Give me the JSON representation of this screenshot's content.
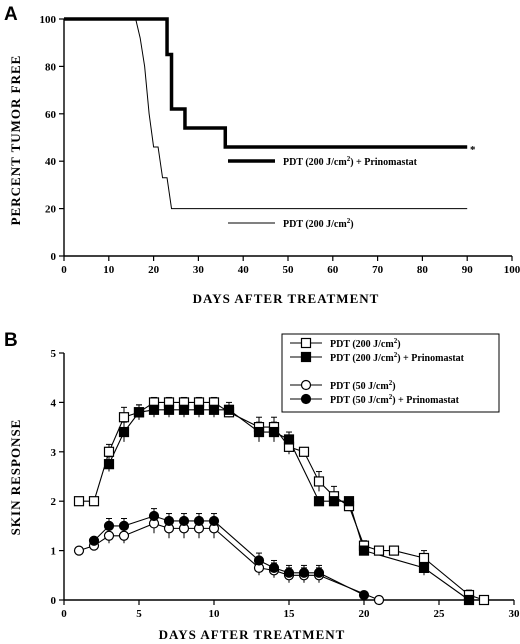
{
  "panels": [
    {
      "letter": "A",
      "ylabel": "PERCENT TUMOR FREE",
      "xlabel": "DAYS AFTER TREATMENT",
      "annotation": "*",
      "legend": [
        {
          "text": "PDT  (200 J/cm",
          "sup": "2",
          "tail": ") + Prinomastat"
        },
        {
          "text": "PDT  (200 J/cm",
          "sup": "2",
          "tail": ")"
        }
      ]
    },
    {
      "letter": "B",
      "ylabel": "SKIN RESPONSE",
      "xlabel": "DAYS AFTER TREATMENT",
      "legend": [
        {
          "text": "PDT (200 J/cm",
          "sup": "2",
          "tail": ")"
        },
        {
          "text": "PDT (200 J/cm",
          "sup": "2",
          "tail": ") + Prinomastat"
        },
        {
          "text": "PDT (50 J/cm",
          "sup": "2",
          "tail": ")"
        },
        {
          "text": "PDT (50 J/cm",
          "sup": "2",
          "tail": ") + Prinomastat"
        }
      ]
    }
  ],
  "chart_data": [
    {
      "type": "line",
      "step": true,
      "xlim": [
        0,
        100
      ],
      "ylim": [
        0,
        100
      ],
      "xticks": [
        0,
        10,
        20,
        30,
        40,
        50,
        60,
        70,
        80,
        90,
        100
      ],
      "yticks": [
        0,
        20,
        40,
        60,
        80,
        100
      ],
      "series": [
        {
          "name": "PDT  (200 J/cm2) + Prinomastat",
          "style": "thick",
          "x": [
            0,
            23,
            23,
            24,
            24,
            27,
            27,
            36,
            36,
            90
          ],
          "y": [
            100,
            100,
            85,
            85,
            62,
            62,
            54,
            54,
            46,
            46
          ]
        },
        {
          "name": "PDT  (200 J/cm2)",
          "style": "thin",
          "x": [
            0,
            16,
            17,
            18,
            19,
            20,
            21,
            22,
            23,
            24,
            90
          ],
          "y": [
            100,
            100,
            92,
            80,
            60,
            46,
            46,
            33,
            33,
            20,
            20
          ]
        }
      ]
    },
    {
      "type": "line",
      "xlim": [
        0,
        30
      ],
      "ylim": [
        0,
        5
      ],
      "xticks": [
        0,
        5,
        10,
        15,
        20,
        25,
        30
      ],
      "yticks": [
        0,
        1,
        2,
        3,
        4,
        5
      ],
      "series": [
        {
          "name": "PDT (200 J/cm2)",
          "marker": "square-open",
          "x": [
            1,
            2,
            3,
            4,
            5,
            6,
            7,
            8,
            9,
            10,
            11,
            13,
            14,
            15,
            16,
            17,
            18,
            19,
            20,
            21,
            22,
            24,
            27,
            28
          ],
          "y": [
            2,
            2,
            3,
            3.7,
            3.8,
            4,
            4,
            4,
            4,
            4,
            3.8,
            3.5,
            3.5,
            3.1,
            3,
            2.4,
            2.1,
            1.9,
            1.1,
            1,
            1,
            0.85,
            0.1,
            0
          ],
          "err": [
            0,
            0,
            0.15,
            0.2,
            0.15,
            0.1,
            0.1,
            0.1,
            0.1,
            0.1,
            0.1,
            0.2,
            0.2,
            0.15,
            0,
            0.2,
            0.2,
            0.1,
            0.1,
            0,
            0,
            0.15,
            0.1,
            0
          ]
        },
        {
          "name": "PDT (200 J/cm2) + Prinomastat",
          "marker": "square-filled",
          "x": [
            3,
            4,
            5,
            6,
            7,
            8,
            9,
            10,
            11,
            13,
            14,
            15,
            17,
            18,
            19,
            20,
            24,
            27
          ],
          "y": [
            2.75,
            3.4,
            3.8,
            3.85,
            3.85,
            3.85,
            3.85,
            3.85,
            3.85,
            3.4,
            3.4,
            3.25,
            2,
            2,
            2,
            1,
            0.65,
            0
          ],
          "err": [
            0.15,
            0.2,
            0.15,
            0.15,
            0.15,
            0.15,
            0.15,
            0.15,
            0.15,
            0.2,
            0.2,
            0.15,
            0,
            0,
            0,
            0.1,
            0.15,
            0
          ]
        },
        {
          "name": "PDT (50 J/cm2)",
          "marker": "circle-open",
          "x": [
            1,
            2,
            3,
            4,
            6,
            7,
            8,
            9,
            10,
            13,
            14,
            15,
            16,
            17,
            21
          ],
          "y": [
            1,
            1.1,
            1.3,
            1.3,
            1.55,
            1.45,
            1.45,
            1.45,
            1.45,
            0.65,
            0.6,
            0.5,
            0.5,
            0.5,
            0
          ],
          "err": [
            0,
            0,
            0.15,
            0.15,
            0.2,
            0.2,
            0.2,
            0.2,
            0.2,
            0.15,
            0.15,
            0.15,
            0.15,
            0.15,
            0
          ]
        },
        {
          "name": "PDT (50 J/cm2) + Prinomastat",
          "marker": "circle-filled",
          "x": [
            2,
            3,
            4,
            6,
            7,
            8,
            9,
            10,
            13,
            14,
            15,
            16,
            17,
            20
          ],
          "y": [
            1.2,
            1.5,
            1.5,
            1.7,
            1.6,
            1.6,
            1.6,
            1.6,
            0.8,
            0.65,
            0.55,
            0.55,
            0.55,
            0.1
          ],
          "err": [
            0,
            0.15,
            0.15,
            0.15,
            0.15,
            0.15,
            0.15,
            0.15,
            0.15,
            0.15,
            0.15,
            0.15,
            0.15,
            0
          ]
        }
      ]
    }
  ]
}
